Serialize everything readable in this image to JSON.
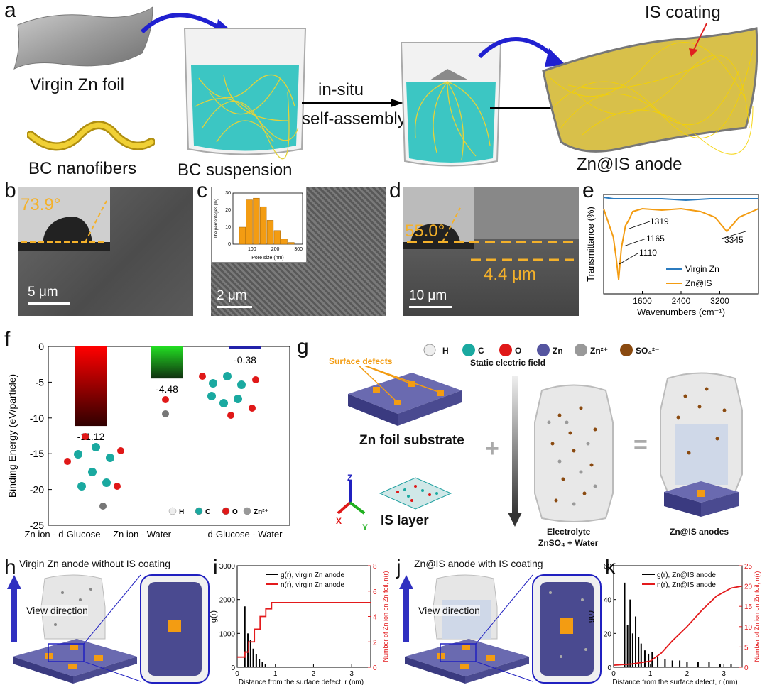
{
  "panels": {
    "a": {
      "letter": "a",
      "virgin_zn_foil": "Virgin Zn foil",
      "bc_nanofibers": "BC nanofibers",
      "bc_suspension": "BC suspension",
      "process_line1": "in-situ",
      "process_line2": "self-assembly",
      "is_coating": "IS coating",
      "zn_is_anode": "Zn@IS anode"
    },
    "b": {
      "letter": "b",
      "angle": "73.9°",
      "scale": "5 μm"
    },
    "c": {
      "letter": "c",
      "scale": "2 μm",
      "inset_ylabel": "The percentages (%)",
      "inset_xlabel": "Pore size (nm)"
    },
    "d": {
      "letter": "d",
      "angle": "55.0°",
      "thickness": "4.4 μm",
      "scale": "10 μm"
    },
    "e": {
      "letter": "e",
      "ylabel": "Transmittance (%)",
      "xlabel": "Wavenumbers (cm⁻¹)",
      "peaks": [
        "1319",
        "1165",
        "1110",
        "3345"
      ],
      "legend": [
        "Virgin Zn",
        "Zn@IS"
      ]
    },
    "f": {
      "letter": "f",
      "atom_legend": [
        "H",
        "C",
        "O",
        "Zn²⁺"
      ]
    },
    "g": {
      "letter": "g",
      "legend": [
        "H",
        "C",
        "O",
        "Zn",
        "Zn²⁺",
        "SO₄²⁻"
      ],
      "surface_defects": "Surface defects",
      "static_field": "Static electric field",
      "zn_foil_substrate": "Zn foil substrate",
      "is_layer": "IS layer",
      "electrolyte_line1": "Electrolyte",
      "electrolyte_line2": "ZnSO₄ + Water",
      "zn_is_anodes": "Zn@IS anodes",
      "plus": "+",
      "equals": "=",
      "axes": [
        "Z",
        "X",
        "Y"
      ]
    },
    "h": {
      "letter": "h",
      "title": "Virgin Zn anode without IS coating",
      "view": "View direction"
    },
    "i": {
      "letter": "i",
      "ylabel": "g(r)",
      "y2label": "Number of Zn ion on Zn foil, n(r)",
      "xlabel": "Distance from the surface defect, r (nm)",
      "legend": [
        "g(r), virgin Zn anode",
        "n(r), virgin Zn anode"
      ]
    },
    "j": {
      "letter": "j",
      "title": "Zn@IS anode with IS coating",
      "view": "View direction"
    },
    "k": {
      "letter": "k",
      "ylabel": "g(r)",
      "y2label": "Number of Zn ion on Zn foil, n(r)",
      "xlabel": "Distance from the surface defect, r (nm)",
      "legend": [
        "g(r), Zn@IS anode",
        "n(r), Zn@IS anode"
      ]
    }
  },
  "chart_data": [
    {
      "panel": "c-inset",
      "type": "bar",
      "categories": [
        60,
        90,
        120,
        150,
        180,
        210,
        240,
        270,
        300
      ],
      "values": [
        10,
        26,
        27,
        22,
        14,
        8,
        3,
        1,
        0
      ],
      "xlabel": "Pore size (nm)",
      "ylabel": "The percentages (%)",
      "xticks": [
        100,
        200,
        300
      ],
      "yticks": [
        0,
        10,
        20,
        30
      ],
      "ylim": [
        0,
        30
      ],
      "color": "#f39c12"
    },
    {
      "panel": "e",
      "type": "line",
      "xlabel": "Wavenumbers (cm⁻¹)",
      "ylabel": "Transmittance (%)",
      "xticks": [
        1600,
        2400,
        3200
      ],
      "xlim": [
        800,
        4000
      ],
      "series": [
        {
          "name": "Virgin Zn",
          "color": "#2b7bbf",
          "x": [
            800,
            1000,
            1500,
            2000,
            2500,
            3000,
            3500,
            4000
          ],
          "y": [
            98,
            97,
            97,
            97,
            96,
            97,
            97,
            97
          ]
        },
        {
          "name": "Zn@IS",
          "color": "#f39c12",
          "x": [
            800,
            900,
            1000,
            1060,
            1110,
            1165,
            1250,
            1319,
            1400,
            1600,
            2000,
            2400,
            2800,
            3100,
            3345,
            3600,
            4000
          ],
          "y": [
            90,
            80,
            70,
            55,
            40,
            62,
            78,
            82,
            88,
            90,
            89,
            90,
            88,
            84,
            74,
            84,
            90
          ]
        }
      ],
      "peaks": [
        1319,
        1165,
        1110,
        3345
      ]
    },
    {
      "panel": "f",
      "type": "bar",
      "categories": [
        "Zn ion - d-Glucose",
        "Zn ion - Water",
        "d-Glucose - Water"
      ],
      "values": [
        -11.12,
        -4.48,
        -0.38
      ],
      "value_labels": [
        "-11.12",
        "-4.48",
        "-0.38"
      ],
      "ylabel": "Binding Energy (eV/particle)",
      "yticks": [
        0,
        -5,
        -10,
        -15,
        -20,
        -25
      ],
      "ylim": [
        -25,
        0
      ],
      "colors": [
        "#ff0000",
        "#22dd22",
        "#2222aa"
      ]
    },
    {
      "panel": "i",
      "type": "line",
      "xlabel": "Distance from the surface defect, r (nm)",
      "ylabel": "g(r)",
      "y2label": "Number of Zn ion on Zn foil, n(r)",
      "xlim": [
        0,
        3.5
      ],
      "ylim": [
        0,
        3000
      ],
      "y2lim": [
        0,
        8
      ],
      "xticks": [
        0,
        1,
        2,
        3
      ],
      "yticks": [
        0,
        1000,
        2000,
        3000
      ],
      "y2ticks": [
        0,
        2,
        4,
        6,
        8
      ],
      "series": [
        {
          "name": "g(r), virgin Zn anode",
          "color": "#000000",
          "kind": "spikes",
          "x": [
            0.2,
            0.28,
            0.35,
            0.42,
            0.5,
            0.58,
            0.66,
            0.74
          ],
          "y": [
            1800,
            1000,
            800,
            550,
            380,
            250,
            150,
            90
          ]
        },
        {
          "name": "n(r), virgin Zn anode",
          "color": "#e31a1c",
          "kind": "step",
          "x": [
            0,
            0.2,
            0.3,
            0.45,
            0.6,
            0.75,
            0.9,
            3.5
          ],
          "y": [
            0.8,
            1.2,
            2.0,
            3.0,
            4.0,
            4.6,
            5.1,
            5.1
          ]
        }
      ]
    },
    {
      "panel": "k",
      "type": "line",
      "xlabel": "Distance from the surface defect, r (nm)",
      "ylabel": "g(r)",
      "y2label": "Number of Zn ion on Zn foil, n(r)",
      "xlim": [
        0,
        3.5
      ],
      "ylim": [
        0,
        60
      ],
      "y2lim": [
        0,
        25
      ],
      "xticks": [
        0,
        1,
        2,
        3
      ],
      "yticks": [
        0,
        20,
        40,
        60
      ],
      "y2ticks": [
        0,
        5,
        10,
        15,
        20,
        25
      ],
      "series": [
        {
          "name": "g(r), Zn@IS anode",
          "color": "#000000",
          "kind": "spikes",
          "x": [
            0.3,
            0.38,
            0.45,
            0.52,
            0.6,
            0.68,
            0.75,
            0.85,
            0.95,
            1.05,
            1.2,
            1.4,
            1.6,
            1.8,
            2.0,
            2.3,
            2.6,
            2.9,
            3.2
          ],
          "y": [
            50,
            25,
            40,
            20,
            30,
            18,
            14,
            10,
            8,
            9,
            6,
            5,
            4,
            4,
            3,
            3,
            3,
            2,
            2
          ]
        },
        {
          "name": "n(r), Zn@IS anode",
          "color": "#e31a1c",
          "kind": "line",
          "x": [
            0,
            0.5,
            1.0,
            1.3,
            1.6,
            2.0,
            2.4,
            2.8,
            3.2,
            3.5
          ],
          "y": [
            0.5,
            0.8,
            1.5,
            3.5,
            6.5,
            10,
            14,
            17.5,
            19.5,
            20
          ]
        }
      ]
    }
  ]
}
